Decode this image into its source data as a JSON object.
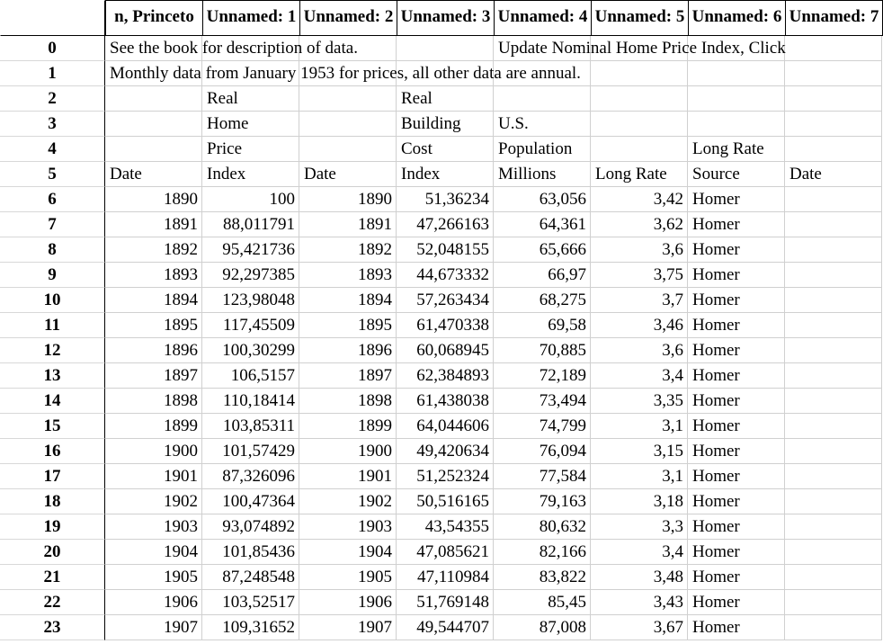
{
  "table": {
    "columns": [
      "n, Princeto",
      "Unnamed: 1",
      "Unnamed: 2",
      "Unnamed: 3",
      "Unnamed: 4",
      "Unnamed: 5",
      "Unnamed: 6",
      "Unnamed: 7"
    ],
    "rows": [
      {
        "index": "0",
        "cells": [
          "See the book for description of data.",
          null,
          null,
          null,
          "Update Nominal Home Price Index, Click",
          null,
          null,
          null
        ]
      },
      {
        "index": "1",
        "cells": [
          "Monthly data from January 1953 for prices, all other data are annual.",
          null,
          null,
          null,
          null,
          null,
          null,
          null
        ]
      },
      {
        "index": "2",
        "cells": [
          null,
          "Real",
          null,
          "Real",
          null,
          null,
          null,
          null
        ]
      },
      {
        "index": "3",
        "cells": [
          null,
          "Home",
          null,
          "Building",
          "U.S.",
          null,
          null,
          null
        ]
      },
      {
        "index": "4",
        "cells": [
          null,
          "Price",
          null,
          "Cost",
          "Population",
          null,
          "Long Rate",
          null
        ]
      },
      {
        "index": "5",
        "cells": [
          "Date",
          "Index",
          "Date",
          "Index",
          "Millions",
          "Long Rate",
          "Source",
          "Date"
        ]
      },
      {
        "index": "6",
        "cells": [
          "1890",
          "100",
          "1890",
          "51,36234",
          "63,056",
          "3,42",
          "Homer",
          null
        ]
      },
      {
        "index": "7",
        "cells": [
          "1891",
          "88,011791",
          "1891",
          "47,266163",
          "64,361",
          "3,62",
          "Homer",
          null
        ]
      },
      {
        "index": "8",
        "cells": [
          "1892",
          "95,421736",
          "1892",
          "52,048155",
          "65,666",
          "3,6",
          "Homer",
          null
        ]
      },
      {
        "index": "9",
        "cells": [
          "1893",
          "92,297385",
          "1893",
          "44,673332",
          "66,97",
          "3,75",
          "Homer",
          null
        ]
      },
      {
        "index": "10",
        "cells": [
          "1894",
          "123,98048",
          "1894",
          "57,263434",
          "68,275",
          "3,7",
          "Homer",
          null
        ]
      },
      {
        "index": "11",
        "cells": [
          "1895",
          "117,45509",
          "1895",
          "61,470338",
          "69,58",
          "3,46",
          "Homer",
          null
        ]
      },
      {
        "index": "12",
        "cells": [
          "1896",
          "100,30299",
          "1896",
          "60,068945",
          "70,885",
          "3,6",
          "Homer",
          null
        ]
      },
      {
        "index": "13",
        "cells": [
          "1897",
          "106,5157",
          "1897",
          "62,384893",
          "72,189",
          "3,4",
          "Homer",
          null
        ]
      },
      {
        "index": "14",
        "cells": [
          "1898",
          "110,18414",
          "1898",
          "61,438038",
          "73,494",
          "3,35",
          "Homer",
          null
        ]
      },
      {
        "index": "15",
        "cells": [
          "1899",
          "103,85311",
          "1899",
          "64,044606",
          "74,799",
          "3,1",
          "Homer",
          null
        ]
      },
      {
        "index": "16",
        "cells": [
          "1900",
          "101,57429",
          "1900",
          "49,420634",
          "76,094",
          "3,15",
          "Homer",
          null
        ]
      },
      {
        "index": "17",
        "cells": [
          "1901",
          "87,326096",
          "1901",
          "51,252324",
          "77,584",
          "3,1",
          "Homer",
          null
        ]
      },
      {
        "index": "18",
        "cells": [
          "1902",
          "100,47364",
          "1902",
          "50,516165",
          "79,163",
          "3,18",
          "Homer",
          null
        ]
      },
      {
        "index": "19",
        "cells": [
          "1903",
          "93,074892",
          "1903",
          "43,54355",
          "80,632",
          "3,3",
          "Homer",
          null
        ]
      },
      {
        "index": "20",
        "cells": [
          "1904",
          "101,85436",
          "1904",
          "47,085621",
          "82,166",
          "3,4",
          "Homer",
          null
        ]
      },
      {
        "index": "21",
        "cells": [
          "1905",
          "87,248548",
          "1905",
          "47,110984",
          "83,822",
          "3,48",
          "Homer",
          null
        ]
      },
      {
        "index": "22",
        "cells": [
          "1906",
          "103,52517",
          "1906",
          "51,769148",
          "85,45",
          "3,43",
          "Homer",
          null
        ]
      },
      {
        "index": "23",
        "cells": [
          "1907",
          "109,31652",
          "1907",
          "49,544707",
          "87,008",
          "3,67",
          "Homer",
          null
        ]
      }
    ]
  }
}
